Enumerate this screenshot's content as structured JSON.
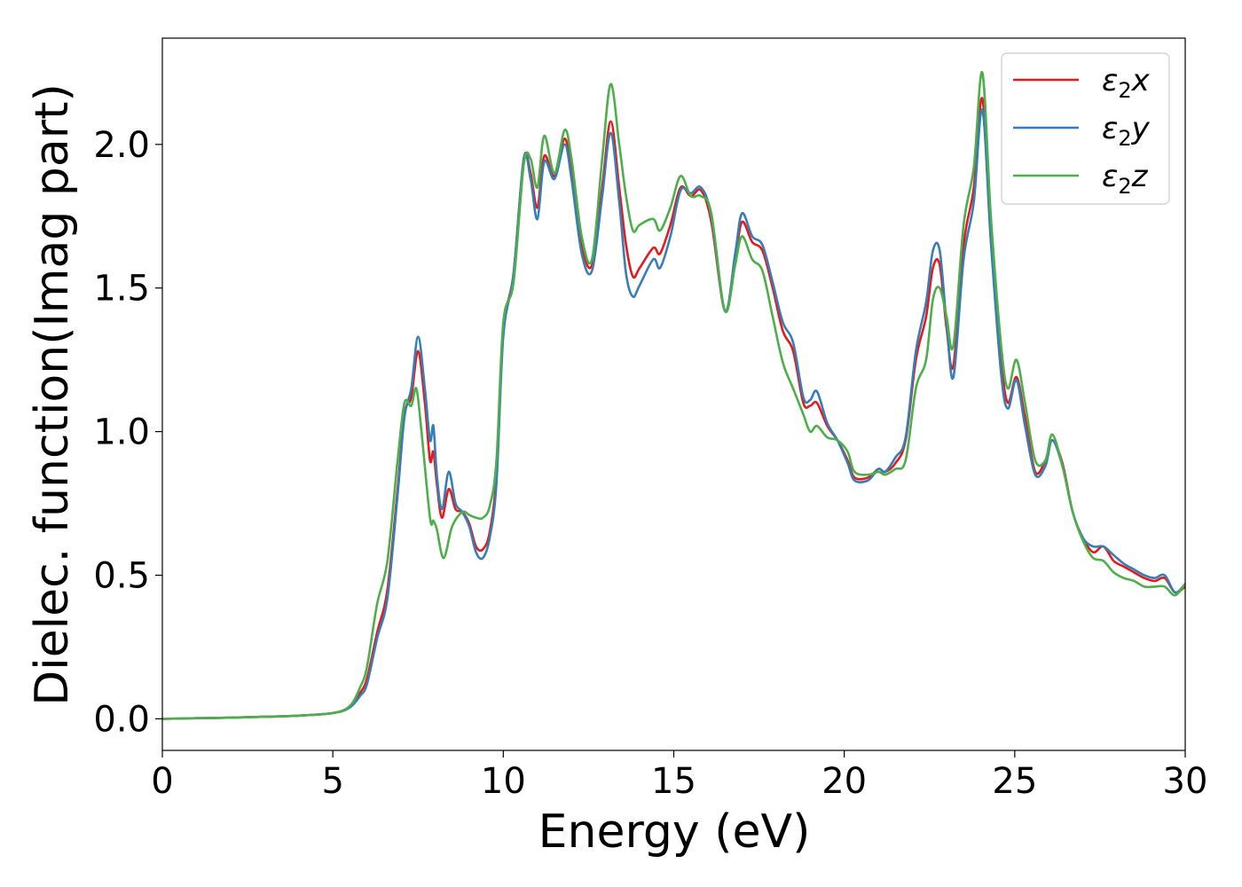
{
  "chart_data": {
    "type": "line",
    "title": "",
    "xlabel": "Energy (eV)",
    "ylabel": "Dielec. function(Imag part)",
    "xlim": [
      0,
      30
    ],
    "ylim": [
      -0.11,
      2.37
    ],
    "xticks": [
      0,
      5,
      10,
      15,
      20,
      25,
      30
    ],
    "yticks": [
      0.0,
      0.5,
      1.0,
      1.5,
      2.0
    ],
    "xtick_labels": [
      "0",
      "5",
      "10",
      "15",
      "20",
      "25",
      "30"
    ],
    "ytick_labels": [
      "0.0",
      "0.5",
      "1.0",
      "1.5",
      "2.0"
    ],
    "grid": false,
    "legend_position": "top-right",
    "series": [
      {
        "name": "ε2x",
        "legend": {
          "main": "ε",
          "sub": "2",
          "axis": "x"
        },
        "color": "#e41a1c",
        "points": [
          [
            0,
            0.0
          ],
          [
            1,
            0.002
          ],
          [
            2,
            0.004
          ],
          [
            3,
            0.007
          ],
          [
            4,
            0.011
          ],
          [
            5,
            0.02
          ],
          [
            5.5,
            0.04
          ],
          [
            5.8,
            0.09
          ],
          [
            6.0,
            0.14
          ],
          [
            6.3,
            0.3
          ],
          [
            6.6,
            0.45
          ],
          [
            6.9,
            0.8
          ],
          [
            7.1,
            1.06
          ],
          [
            7.3,
            1.12
          ],
          [
            7.5,
            1.28
          ],
          [
            7.7,
            1.1
          ],
          [
            7.85,
            0.9
          ],
          [
            7.95,
            0.93
          ],
          [
            8.05,
            0.82
          ],
          [
            8.2,
            0.7
          ],
          [
            8.4,
            0.8
          ],
          [
            8.6,
            0.73
          ],
          [
            8.8,
            0.72
          ],
          [
            9.0,
            0.68
          ],
          [
            9.2,
            0.6
          ],
          [
            9.4,
            0.59
          ],
          [
            9.6,
            0.65
          ],
          [
            9.8,
            0.85
          ],
          [
            10.0,
            1.35
          ],
          [
            10.3,
            1.55
          ],
          [
            10.6,
            1.95
          ],
          [
            10.8,
            1.9
          ],
          [
            11.0,
            1.78
          ],
          [
            11.2,
            1.96
          ],
          [
            11.5,
            1.89
          ],
          [
            11.8,
            2.02
          ],
          [
            12.0,
            1.9
          ],
          [
            12.3,
            1.65
          ],
          [
            12.6,
            1.58
          ],
          [
            12.9,
            1.85
          ],
          [
            13.15,
            2.08
          ],
          [
            13.4,
            1.85
          ],
          [
            13.6,
            1.65
          ],
          [
            13.8,
            1.54
          ],
          [
            14.0,
            1.57
          ],
          [
            14.4,
            1.64
          ],
          [
            14.6,
            1.62
          ],
          [
            14.9,
            1.72
          ],
          [
            15.2,
            1.85
          ],
          [
            15.5,
            1.82
          ],
          [
            15.8,
            1.84
          ],
          [
            16.1,
            1.73
          ],
          [
            16.5,
            1.42
          ],
          [
            16.8,
            1.6
          ],
          [
            17.0,
            1.73
          ],
          [
            17.3,
            1.66
          ],
          [
            17.6,
            1.63
          ],
          [
            17.9,
            1.5
          ],
          [
            18.2,
            1.35
          ],
          [
            18.5,
            1.28
          ],
          [
            18.8,
            1.1
          ],
          [
            19.0,
            1.09
          ],
          [
            19.2,
            1.1
          ],
          [
            19.5,
            1.02
          ],
          [
            19.8,
            0.97
          ],
          [
            20.1,
            0.9
          ],
          [
            20.3,
            0.84
          ],
          [
            20.7,
            0.84
          ],
          [
            21.0,
            0.87
          ],
          [
            21.2,
            0.86
          ],
          [
            21.5,
            0.89
          ],
          [
            21.8,
            0.97
          ],
          [
            22.1,
            1.25
          ],
          [
            22.4,
            1.4
          ],
          [
            22.6,
            1.57
          ],
          [
            22.8,
            1.58
          ],
          [
            23.0,
            1.36
          ],
          [
            23.2,
            1.23
          ],
          [
            23.5,
            1.65
          ],
          [
            23.8,
            1.85
          ],
          [
            24.05,
            2.16
          ],
          [
            24.3,
            1.7
          ],
          [
            24.6,
            1.25
          ],
          [
            24.8,
            1.1
          ],
          [
            25.05,
            1.19
          ],
          [
            25.3,
            1.05
          ],
          [
            25.6,
            0.86
          ],
          [
            25.9,
            0.9
          ],
          [
            26.1,
            0.97
          ],
          [
            26.4,
            0.89
          ],
          [
            26.7,
            0.72
          ],
          [
            27.0,
            0.63
          ],
          [
            27.3,
            0.58
          ],
          [
            27.6,
            0.6
          ],
          [
            27.9,
            0.55
          ],
          [
            28.2,
            0.53
          ],
          [
            28.5,
            0.51
          ],
          [
            28.8,
            0.49
          ],
          [
            29.1,
            0.48
          ],
          [
            29.4,
            0.49
          ],
          [
            29.7,
            0.44
          ],
          [
            30.0,
            0.46
          ]
        ]
      },
      {
        "name": "ε2y",
        "legend": {
          "main": "ε",
          "sub": "2",
          "axis": "y"
        },
        "color": "#377eb8",
        "points": [
          [
            0,
            0.0
          ],
          [
            1,
            0.002
          ],
          [
            2,
            0.004
          ],
          [
            3,
            0.007
          ],
          [
            4,
            0.011
          ],
          [
            5,
            0.02
          ],
          [
            5.5,
            0.04
          ],
          [
            5.8,
            0.08
          ],
          [
            6.0,
            0.12
          ],
          [
            6.3,
            0.28
          ],
          [
            6.6,
            0.42
          ],
          [
            6.9,
            0.78
          ],
          [
            7.1,
            1.05
          ],
          [
            7.3,
            1.15
          ],
          [
            7.5,
            1.33
          ],
          [
            7.7,
            1.15
          ],
          [
            7.85,
            0.97
          ],
          [
            7.95,
            1.02
          ],
          [
            8.05,
            0.85
          ],
          [
            8.2,
            0.73
          ],
          [
            8.4,
            0.86
          ],
          [
            8.6,
            0.75
          ],
          [
            8.8,
            0.72
          ],
          [
            9.0,
            0.67
          ],
          [
            9.2,
            0.58
          ],
          [
            9.4,
            0.56
          ],
          [
            9.6,
            0.63
          ],
          [
            9.8,
            0.82
          ],
          [
            10.0,
            1.33
          ],
          [
            10.3,
            1.55
          ],
          [
            10.6,
            1.95
          ],
          [
            10.8,
            1.88
          ],
          [
            11.0,
            1.74
          ],
          [
            11.2,
            1.94
          ],
          [
            11.5,
            1.88
          ],
          [
            11.8,
            2.0
          ],
          [
            12.0,
            1.88
          ],
          [
            12.3,
            1.62
          ],
          [
            12.6,
            1.56
          ],
          [
            12.9,
            1.82
          ],
          [
            13.15,
            2.04
          ],
          [
            13.4,
            1.8
          ],
          [
            13.6,
            1.55
          ],
          [
            13.8,
            1.47
          ],
          [
            14.0,
            1.51
          ],
          [
            14.4,
            1.6
          ],
          [
            14.6,
            1.57
          ],
          [
            14.9,
            1.68
          ],
          [
            15.2,
            1.84
          ],
          [
            15.5,
            1.83
          ],
          [
            15.8,
            1.85
          ],
          [
            16.1,
            1.75
          ],
          [
            16.5,
            1.42
          ],
          [
            16.8,
            1.62
          ],
          [
            17.0,
            1.76
          ],
          [
            17.3,
            1.68
          ],
          [
            17.6,
            1.65
          ],
          [
            17.9,
            1.52
          ],
          [
            18.2,
            1.38
          ],
          [
            18.5,
            1.31
          ],
          [
            18.8,
            1.12
          ],
          [
            19.0,
            1.11
          ],
          [
            19.2,
            1.14
          ],
          [
            19.5,
            1.03
          ],
          [
            19.8,
            0.97
          ],
          [
            20.1,
            0.89
          ],
          [
            20.3,
            0.83
          ],
          [
            20.7,
            0.83
          ],
          [
            21.0,
            0.87
          ],
          [
            21.2,
            0.86
          ],
          [
            21.5,
            0.91
          ],
          [
            21.8,
            0.98
          ],
          [
            22.1,
            1.28
          ],
          [
            22.4,
            1.45
          ],
          [
            22.6,
            1.63
          ],
          [
            22.8,
            1.63
          ],
          [
            23.0,
            1.38
          ],
          [
            23.2,
            1.19
          ],
          [
            23.5,
            1.6
          ],
          [
            23.8,
            1.8
          ],
          [
            24.05,
            2.12
          ],
          [
            24.3,
            1.66
          ],
          [
            24.6,
            1.2
          ],
          [
            24.8,
            1.08
          ],
          [
            25.05,
            1.18
          ],
          [
            25.3,
            1.02
          ],
          [
            25.6,
            0.85
          ],
          [
            25.9,
            0.88
          ],
          [
            26.1,
            0.97
          ],
          [
            26.4,
            0.88
          ],
          [
            26.7,
            0.72
          ],
          [
            27.0,
            0.63
          ],
          [
            27.3,
            0.6
          ],
          [
            27.6,
            0.6
          ],
          [
            27.9,
            0.57
          ],
          [
            28.2,
            0.54
          ],
          [
            28.5,
            0.52
          ],
          [
            28.8,
            0.5
          ],
          [
            29.1,
            0.49
          ],
          [
            29.4,
            0.5
          ],
          [
            29.7,
            0.44
          ],
          [
            30.0,
            0.47
          ]
        ]
      },
      {
        "name": "ε2z",
        "legend": {
          "main": "ε",
          "sub": "2",
          "axis": "z"
        },
        "color": "#4daf4a",
        "points": [
          [
            0,
            0.0
          ],
          [
            1,
            0.002
          ],
          [
            2,
            0.004
          ],
          [
            3,
            0.007
          ],
          [
            4,
            0.011
          ],
          [
            5,
            0.02
          ],
          [
            5.5,
            0.045
          ],
          [
            5.8,
            0.11
          ],
          [
            6.0,
            0.18
          ],
          [
            6.3,
            0.4
          ],
          [
            6.6,
            0.55
          ],
          [
            6.9,
            0.9
          ],
          [
            7.1,
            1.1
          ],
          [
            7.3,
            1.09
          ],
          [
            7.45,
            1.15
          ],
          [
            7.6,
            1.0
          ],
          [
            7.85,
            0.7
          ],
          [
            7.95,
            0.69
          ],
          [
            8.05,
            0.66
          ],
          [
            8.25,
            0.56
          ],
          [
            8.5,
            0.67
          ],
          [
            8.8,
            0.72
          ],
          [
            9.0,
            0.71
          ],
          [
            9.2,
            0.7
          ],
          [
            9.4,
            0.7
          ],
          [
            9.6,
            0.74
          ],
          [
            9.8,
            0.9
          ],
          [
            10.0,
            1.38
          ],
          [
            10.3,
            1.52
          ],
          [
            10.6,
            1.93
          ],
          [
            10.8,
            1.95
          ],
          [
            11.0,
            1.85
          ],
          [
            11.2,
            2.03
          ],
          [
            11.5,
            1.9
          ],
          [
            11.8,
            2.05
          ],
          [
            12.0,
            1.95
          ],
          [
            12.3,
            1.68
          ],
          [
            12.6,
            1.6
          ],
          [
            12.9,
            1.95
          ],
          [
            13.15,
            2.21
          ],
          [
            13.4,
            2.0
          ],
          [
            13.6,
            1.82
          ],
          [
            13.8,
            1.7
          ],
          [
            14.0,
            1.72
          ],
          [
            14.4,
            1.74
          ],
          [
            14.6,
            1.7
          ],
          [
            14.9,
            1.78
          ],
          [
            15.2,
            1.89
          ],
          [
            15.5,
            1.82
          ],
          [
            15.8,
            1.82
          ],
          [
            16.1,
            1.76
          ],
          [
            16.5,
            1.42
          ],
          [
            16.8,
            1.58
          ],
          [
            17.0,
            1.68
          ],
          [
            17.3,
            1.6
          ],
          [
            17.6,
            1.56
          ],
          [
            17.9,
            1.4
          ],
          [
            18.2,
            1.24
          ],
          [
            18.5,
            1.15
          ],
          [
            18.8,
            1.06
          ],
          [
            19.0,
            1.0
          ],
          [
            19.2,
            1.02
          ],
          [
            19.5,
            0.98
          ],
          [
            19.8,
            0.97
          ],
          [
            20.1,
            0.93
          ],
          [
            20.3,
            0.86
          ],
          [
            20.7,
            0.85
          ],
          [
            21.0,
            0.86
          ],
          [
            21.2,
            0.85
          ],
          [
            21.5,
            0.87
          ],
          [
            21.8,
            0.9
          ],
          [
            22.1,
            1.15
          ],
          [
            22.4,
            1.25
          ],
          [
            22.6,
            1.46
          ],
          [
            22.8,
            1.5
          ],
          [
            23.0,
            1.4
          ],
          [
            23.2,
            1.3
          ],
          [
            23.5,
            1.72
          ],
          [
            23.8,
            1.92
          ],
          [
            24.05,
            2.25
          ],
          [
            24.3,
            1.75
          ],
          [
            24.6,
            1.3
          ],
          [
            24.8,
            1.15
          ],
          [
            25.05,
            1.25
          ],
          [
            25.3,
            1.1
          ],
          [
            25.6,
            0.9
          ],
          [
            25.9,
            0.9
          ],
          [
            26.1,
            0.99
          ],
          [
            26.4,
            0.88
          ],
          [
            26.7,
            0.72
          ],
          [
            27.0,
            0.62
          ],
          [
            27.3,
            0.56
          ],
          [
            27.6,
            0.55
          ],
          [
            27.9,
            0.51
          ],
          [
            28.2,
            0.49
          ],
          [
            28.5,
            0.48
          ],
          [
            28.8,
            0.46
          ],
          [
            29.1,
            0.46
          ],
          [
            29.4,
            0.46
          ],
          [
            29.7,
            0.43
          ],
          [
            30.0,
            0.47
          ]
        ]
      }
    ]
  }
}
